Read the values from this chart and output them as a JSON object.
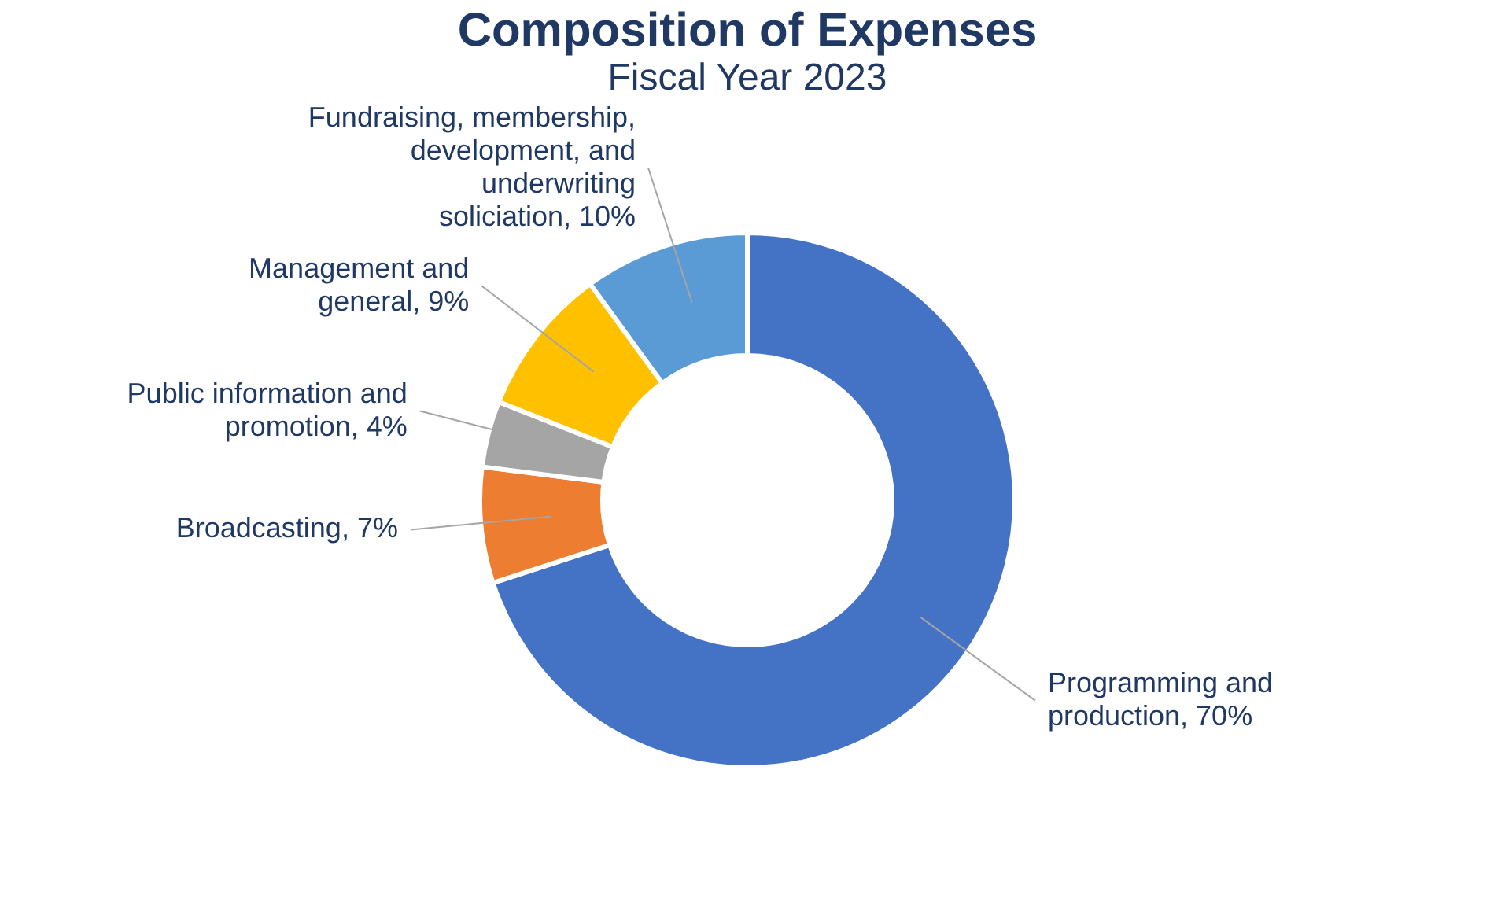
{
  "chart_data": {
    "type": "donut",
    "title": "Composition of Expenses",
    "subtitle": "Fiscal Year 2023",
    "categories": [
      "Programming and production",
      "Broadcasting",
      "Public information and promotion",
      "Management and general",
      "Fundraising, membership, development, and underwriting soliciation"
    ],
    "values": [
      70,
      7,
      4,
      9,
      10
    ],
    "value_labels": [
      "70%",
      "7%",
      "4%",
      "9%",
      "10%"
    ],
    "colors": [
      "#4472c4",
      "#ed7d31",
      "#a5a5a5",
      "#ffc000",
      "#5b9bd5"
    ]
  }
}
